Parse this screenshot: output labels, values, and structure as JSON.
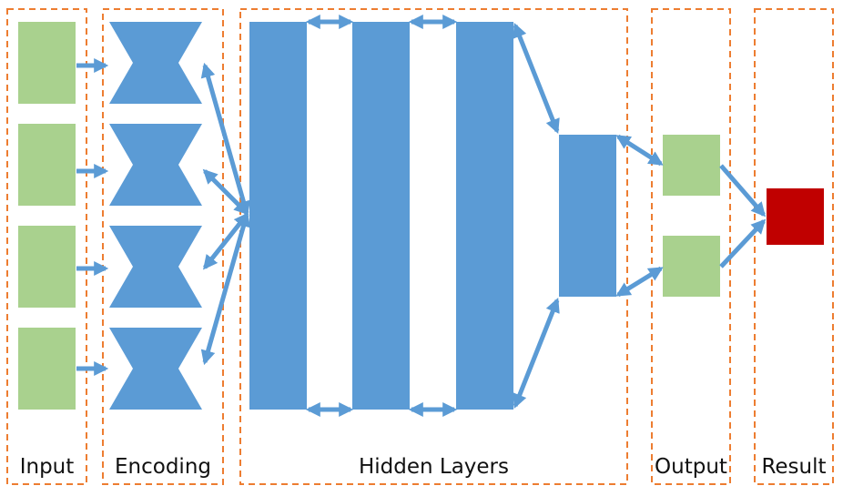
{
  "sections": [
    {
      "id": "input",
      "label": "Input"
    },
    {
      "id": "encoding",
      "label": "Encoding"
    },
    {
      "id": "hidden",
      "label": "Hidden Layers"
    },
    {
      "id": "output",
      "label": "Output"
    },
    {
      "id": "result",
      "label": "Result"
    }
  ],
  "colors": {
    "input_node": "#a9d18e",
    "layer_blue": "#5b9bd5",
    "result_node": "#c00000",
    "section_border": "#ed7d31",
    "text": "#111111"
  }
}
